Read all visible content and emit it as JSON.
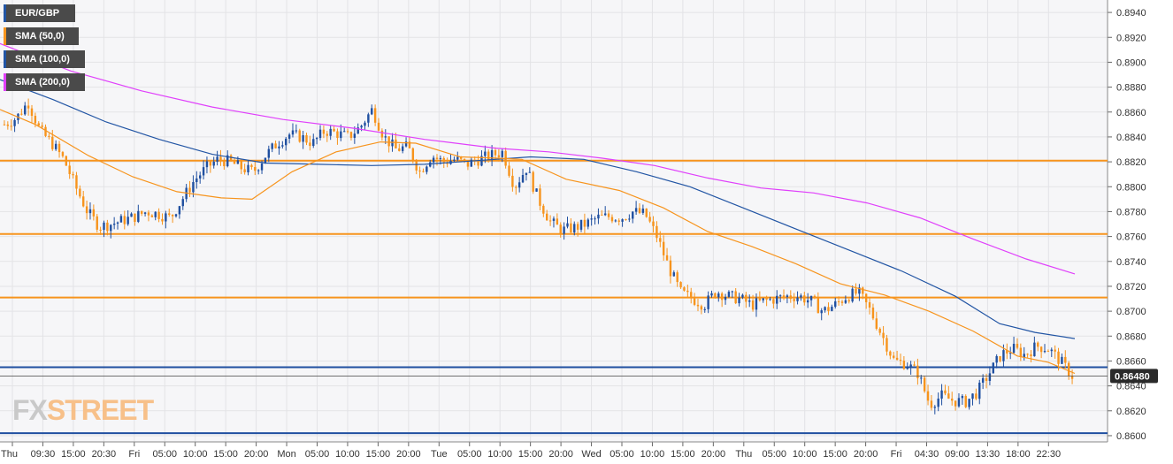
{
  "legend": [
    {
      "label": "EUR/GBP",
      "color": "#2255a4"
    },
    {
      "label": "SMA (50,0)",
      "color": "#f7941d"
    },
    {
      "label": "SMA (100,0)",
      "color": "#2255a4"
    },
    {
      "label": "SMA (200,0)",
      "color": "#e040fb"
    }
  ],
  "logo": {
    "part1": "FX",
    "part2": "STREET"
  },
  "colors": {
    "up": "#1f4fa0",
    "down": "#f7941d",
    "sma50": "#f7941d",
    "sma100": "#2255a4",
    "sma200": "#e040fb",
    "resistance": "#f7941d",
    "support": "#1f4fa0",
    "price_tag": "#2a2a2a"
  },
  "chart_data": {
    "type": "candlestick",
    "symbol": "EUR/GBP",
    "ylim": [
      0.8595,
      0.895
    ],
    "yticks": [
      "0.8600",
      "0.8620",
      "0.8640",
      "0.8660",
      "0.8680",
      "0.8700",
      "0.8720",
      "0.8740",
      "0.8760",
      "0.8780",
      "0.8800",
      "0.8820",
      "0.8840",
      "0.8860",
      "0.8880",
      "0.8900",
      "0.8920",
      "0.8940"
    ],
    "xticks": [
      "Thu",
      "09:30",
      "15:00",
      "20:30",
      "Fri",
      "05:00",
      "10:00",
      "15:00",
      "20:00",
      "Mon",
      "05:00",
      "10:00",
      "15:00",
      "20:00",
      "Tue",
      "05:00",
      "10:00",
      "15:00",
      "20:00",
      "Wed",
      "05:00",
      "10:00",
      "15:00",
      "20:00",
      "Thu",
      "05:00",
      "10:00",
      "15:00",
      "20:00",
      "Fri",
      "04:30",
      "09:00",
      "13:30",
      "18:00",
      "22:30"
    ],
    "last_price": "0.86480",
    "resistance_levels": [
      0.8821,
      0.8762,
      0.8711
    ],
    "support_levels": [
      0.8655,
      0.8602
    ],
    "price_path": [
      0.885,
      0.8855,
      0.8868,
      0.8845,
      0.8835,
      0.8822,
      0.88,
      0.878,
      0.8768,
      0.877,
      0.8773,
      0.8776,
      0.878,
      0.8778,
      0.8775,
      0.879,
      0.8805,
      0.8815,
      0.8822,
      0.882,
      0.8815,
      0.8812,
      0.8825,
      0.8835,
      0.8842,
      0.884,
      0.8835,
      0.8845,
      0.8843,
      0.884,
      0.8848,
      0.8862,
      0.884,
      0.883,
      0.8832,
      0.8812,
      0.8825,
      0.882,
      0.8822,
      0.8818,
      0.8822,
      0.8825,
      0.8828,
      0.88,
      0.8815,
      0.879,
      0.8772,
      0.8765,
      0.8767,
      0.877,
      0.8775,
      0.8776,
      0.8775,
      0.878,
      0.8778,
      0.876,
      0.8735,
      0.8715,
      0.871,
      0.8705,
      0.8716,
      0.8712,
      0.871,
      0.8705,
      0.8708,
      0.871,
      0.8712,
      0.8712,
      0.8708,
      0.87,
      0.8705,
      0.8712,
      0.8715,
      0.87,
      0.868,
      0.866,
      0.8658,
      0.865,
      0.8625,
      0.8632,
      0.8628,
      0.8627,
      0.8635,
      0.865,
      0.8665,
      0.867,
      0.8665,
      0.8672,
      0.867,
      0.866,
      0.8648
    ],
    "sma50": [
      [
        0,
        0.8862
      ],
      [
        40,
        0.885
      ],
      [
        100,
        0.8825
      ],
      [
        150,
        0.8808
      ],
      [
        200,
        0.8796
      ],
      [
        250,
        0.8791
      ],
      [
        285,
        0.879
      ],
      [
        330,
        0.8812
      ],
      [
        380,
        0.8828
      ],
      [
        430,
        0.8836
      ],
      [
        470,
        0.8835
      ],
      [
        520,
        0.8824
      ],
      [
        560,
        0.8823
      ],
      [
        590,
        0.8822
      ],
      [
        640,
        0.8806
      ],
      [
        700,
        0.8797
      ],
      [
        750,
        0.8783
      ],
      [
        800,
        0.8764
      ],
      [
        850,
        0.8752
      ],
      [
        900,
        0.8738
      ],
      [
        950,
        0.8722
      ],
      [
        1000,
        0.8713
      ],
      [
        1050,
        0.87
      ],
      [
        1100,
        0.8684
      ],
      [
        1150,
        0.8664
      ],
      [
        1185,
        0.8659
      ],
      [
        1215,
        0.865
      ]
    ],
    "sma100": [
      [
        0,
        0.8886
      ],
      [
        60,
        0.887
      ],
      [
        120,
        0.8852
      ],
      [
        180,
        0.8838
      ],
      [
        240,
        0.8826
      ],
      [
        300,
        0.8819
      ],
      [
        360,
        0.8818
      ],
      [
        420,
        0.8817
      ],
      [
        480,
        0.8818
      ],
      [
        540,
        0.8821
      ],
      [
        600,
        0.8824
      ],
      [
        660,
        0.8822
      ],
      [
        720,
        0.8812
      ],
      [
        780,
        0.88
      ],
      [
        840,
        0.8783
      ],
      [
        900,
        0.8766
      ],
      [
        960,
        0.8749
      ],
      [
        1020,
        0.8732
      ],
      [
        1080,
        0.8712
      ],
      [
        1130,
        0.869
      ],
      [
        1170,
        0.8683
      ],
      [
        1215,
        0.8678
      ]
    ],
    "sma200": [
      [
        0,
        0.8915
      ],
      [
        80,
        0.8893
      ],
      [
        160,
        0.8877
      ],
      [
        240,
        0.8864
      ],
      [
        320,
        0.8854
      ],
      [
        400,
        0.8847
      ],
      [
        480,
        0.8838
      ],
      [
        560,
        0.8831
      ],
      [
        620,
        0.8828
      ],
      [
        680,
        0.8823
      ],
      [
        740,
        0.8817
      ],
      [
        800,
        0.8807
      ],
      [
        860,
        0.8799
      ],
      [
        920,
        0.8795
      ],
      [
        980,
        0.8787
      ],
      [
        1040,
        0.8775
      ],
      [
        1100,
        0.8758
      ],
      [
        1160,
        0.8742
      ],
      [
        1215,
        0.873
      ]
    ]
  }
}
